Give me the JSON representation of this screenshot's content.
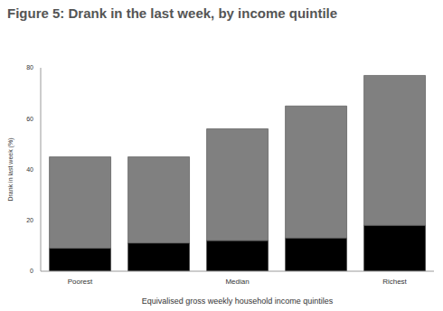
{
  "chart_data": {
    "type": "bar",
    "title": "Figure 5: Drank in the last week, by income quintile",
    "x_label": "Equivalised gross weekly household income quintiles",
    "y_label": "Drank in last week (%)",
    "categories": [
      "Poorest",
      null,
      "Median",
      null,
      "Richest"
    ],
    "series": [
      {
        "color": "#000000",
        "values": [
          9,
          11,
          12,
          13,
          18
        ]
      },
      {
        "color": "#808080",
        "values": [
          36,
          34,
          44,
          52,
          59
        ]
      }
    ],
    "stacked": true,
    "ylim": [
      0,
      80
    ],
    "yticks": [
      0,
      20,
      40,
      60,
      80
    ],
    "grid": false
  }
}
